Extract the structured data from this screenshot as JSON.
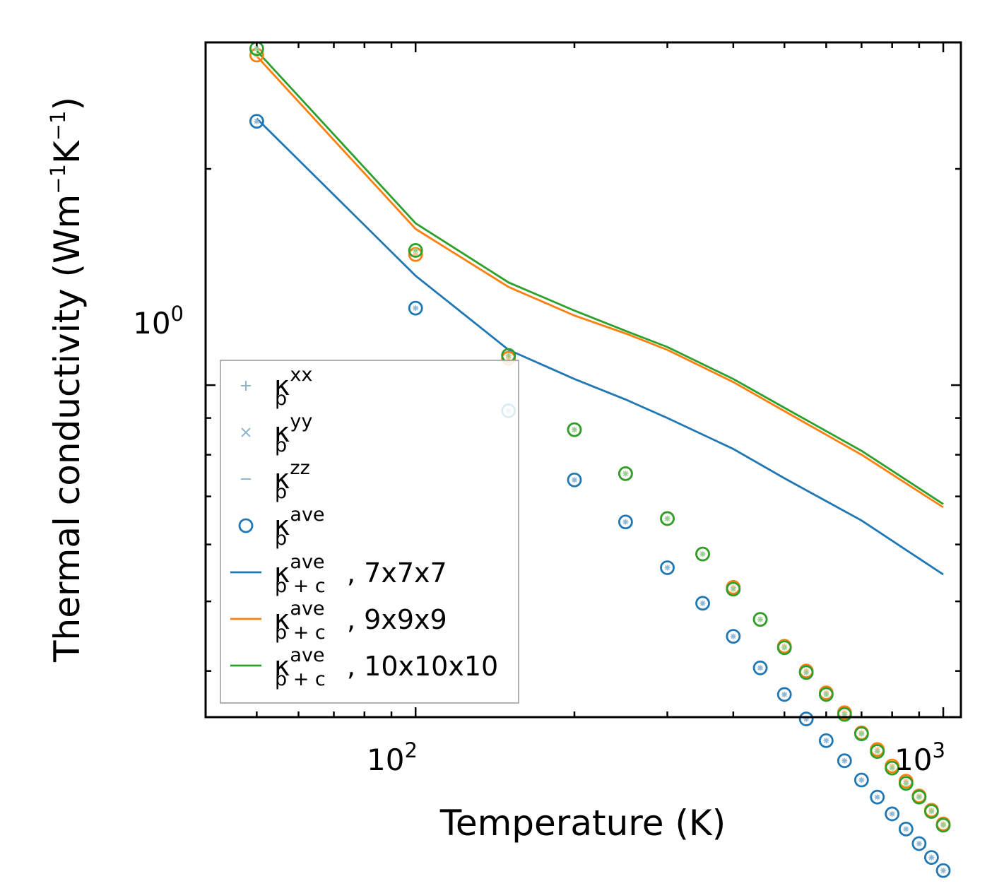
{
  "chart_data": {
    "type": "scatter",
    "xscale": "log",
    "yscale": "log",
    "xlim": [
      40,
      1080
    ],
    "ylim": [
      0.345,
      3.0
    ],
    "xlabel": "Temperature (K)",
    "ylabel": {
      "main": "Thermal conductivity (Wm",
      "sup1": "−1",
      "mid": "K",
      "sup2": "−1",
      "end": ")"
    },
    "x_ticks": [
      {
        "base": "10",
        "exp": "2",
        "value": 100
      },
      {
        "base": "10",
        "exp": "3",
        "value": 1000
      }
    ],
    "y_ticks": [
      {
        "base": "10",
        "exp": "0",
        "value": 1
      }
    ],
    "temperatures": [
      50,
      100,
      150,
      200,
      250,
      300,
      350,
      400,
      450,
      500,
      550,
      600,
      650,
      700,
      750,
      800,
      850,
      900,
      950,
      1000
    ],
    "scatter_series": [
      {
        "key": "kp_low",
        "color": "#1f77b4",
        "values": [
          2.33,
          1.28,
          0.921,
          0.738,
          0.645,
          0.557,
          0.497,
          0.447,
          0.404,
          0.371,
          0.343,
          0.32,
          0.3,
          0.282,
          0.267,
          0.253,
          0.241,
          0.23,
          0.22,
          0.211
        ]
      },
      {
        "key": "kp_high",
        "color": "#ff7f0e",
        "values": [
          2.88,
          1.52,
          1.09,
          0.867,
          0.753,
          0.652,
          0.582,
          0.523,
          0.472,
          0.433,
          0.4,
          0.373,
          0.35,
          0.328,
          0.311,
          0.295,
          0.281,
          0.268,
          0.256,
          0.245
        ]
      },
      {
        "key": "kp_high_g",
        "color": "#2ca02c",
        "values": [
          2.94,
          1.54,
          1.1,
          0.867,
          0.753,
          0.652,
          0.582,
          0.52,
          0.472,
          0.431,
          0.398,
          0.371,
          0.348,
          0.327,
          0.309,
          0.293,
          0.279,
          0.267,
          0.255,
          0.244
        ]
      }
    ],
    "line_series": [
      {
        "name": "7x7x7",
        "color": "#1f77b4",
        "x": [
          50,
          100,
          150,
          200,
          250,
          300,
          400,
          500,
          700,
          1000
        ],
        "y": [
          2.35,
          1.42,
          1.12,
          1.02,
          0.955,
          0.9,
          0.815,
          0.742,
          0.648,
          0.545
        ]
      },
      {
        "name": "9x9x9",
        "color": "#ff7f0e",
        "x": [
          50,
          100,
          150,
          200,
          250,
          300,
          400,
          500,
          700,
          1000
        ],
        "y": [
          2.87,
          1.65,
          1.37,
          1.25,
          1.18,
          1.12,
          1.01,
          0.92,
          0.8,
          0.676
        ]
      },
      {
        "name": "10x10x10",
        "color": "#2ca02c",
        "x": [
          50,
          100,
          150,
          200,
          250,
          300,
          400,
          500,
          700,
          1000
        ],
        "y": [
          2.92,
          1.68,
          1.39,
          1.27,
          1.19,
          1.13,
          1.02,
          0.93,
          0.81,
          0.683
        ]
      }
    ],
    "legend": {
      "position": "lower-left",
      "items": [
        {
          "marker": "plus",
          "color": "#8fb6d3",
          "base": "κ",
          "sub": "p",
          "sup": "xx",
          "suffix": ""
        },
        {
          "marker": "cross",
          "color": "#8fb6d3",
          "base": "κ",
          "sub": "p",
          "sup": "yy",
          "suffix": ""
        },
        {
          "marker": "dash",
          "color": "#8fb6d3",
          "base": "κ",
          "sub": "p",
          "sup": "zz",
          "suffix": ""
        },
        {
          "marker": "circle",
          "color": "#1f77b4",
          "base": "κ",
          "sub": "p",
          "sup": "ave",
          "suffix": ""
        },
        {
          "marker": "line",
          "color": "#1f77b4",
          "base": "κ",
          "sub": "p + c",
          "sup": "ave",
          "suffix": ", 7x7x7"
        },
        {
          "marker": "line",
          "color": "#ff7f0e",
          "base": "κ",
          "sub": "p + c",
          "sup": "ave",
          "suffix": ", 9x9x9"
        },
        {
          "marker": "line",
          "color": "#2ca02c",
          "base": "κ",
          "sub": "p + c",
          "sup": "ave",
          "suffix": ", 10x10x10"
        }
      ]
    }
  }
}
